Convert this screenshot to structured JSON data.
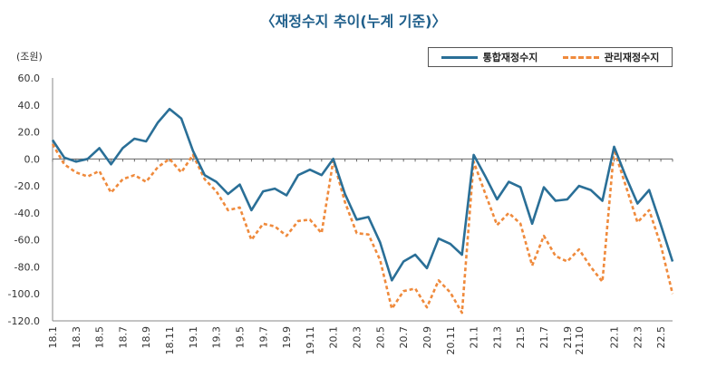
{
  "title": "〈재정수지 추이(누계 기준)〉",
  "unit_label": "(조원)",
  "colors": {
    "series1": "#2a6f97",
    "series2": "#ef8a3c",
    "title": "#1f5f8b"
  },
  "chart_data": {
    "type": "line",
    "ylim": [
      -120,
      60
    ],
    "yticks": [
      "60.0",
      "40.0",
      "20.0",
      "0.0",
      "-20.0",
      "-40.0",
      "-60.0",
      "-80.0",
      "-100.0",
      "-120.0"
    ],
    "ytick_values": [
      60,
      40,
      20,
      0,
      -20,
      -40,
      -60,
      -80,
      -100,
      -120
    ],
    "xtick_labels": [
      "18.1",
      "18.3",
      "18.5",
      "18.7",
      "18.9",
      "18.11",
      "19.1",
      "19.3",
      "19.5",
      "19.7",
      "19.9",
      "19.11",
      "20.1",
      "20.3",
      "20.5",
      "20.7",
      "20.9",
      "20.11",
      "21.1",
      "21.3",
      "21.5",
      "21.7",
      "21.9",
      "21.10",
      "22.1",
      "22.3",
      "22.5"
    ],
    "xtick_indices": [
      0,
      2,
      4,
      6,
      8,
      10,
      12,
      14,
      16,
      18,
      20,
      22,
      24,
      26,
      28,
      30,
      32,
      34,
      36,
      38,
      40,
      42,
      44,
      45,
      48,
      50,
      52
    ],
    "legend_position": "top-right",
    "series": [
      {
        "name": "통합재정수지",
        "values": [
          14,
          1,
          -2,
          0,
          8,
          -4,
          8,
          15,
          13,
          27,
          37,
          30,
          6,
          -12,
          -17,
          -26,
          -19,
          -38,
          -24,
          -22,
          -27,
          -12,
          -8,
          -12,
          0,
          -26,
          -45,
          -43,
          -62,
          -90,
          -76,
          -71,
          -81,
          -59,
          -63,
          -71,
          3,
          -13,
          -30,
          -17,
          -21,
          -48,
          -21,
          -31,
          -30,
          -20,
          -23,
          -31,
          9,
          -13,
          -33,
          -23,
          -49,
          -76
        ]
      },
      {
        "name": "관리재정수지",
        "values": [
          11,
          -4,
          -10,
          -13,
          -9,
          -25,
          -15,
          -12,
          -17,
          -6,
          0,
          -10,
          3,
          -15,
          -24,
          -38,
          -36,
          -60,
          -48,
          -50,
          -57,
          -46,
          -45,
          -55,
          -1,
          -32,
          -55,
          -56,
          -75,
          -111,
          -98,
          -96,
          -110,
          -90,
          -99,
          -114,
          -2,
          -26,
          -49,
          -40,
          -48,
          -79,
          -57,
          -72,
          -76,
          -67,
          -80,
          -91,
          7,
          -20,
          -47,
          -38,
          -64,
          -100
        ]
      }
    ]
  }
}
